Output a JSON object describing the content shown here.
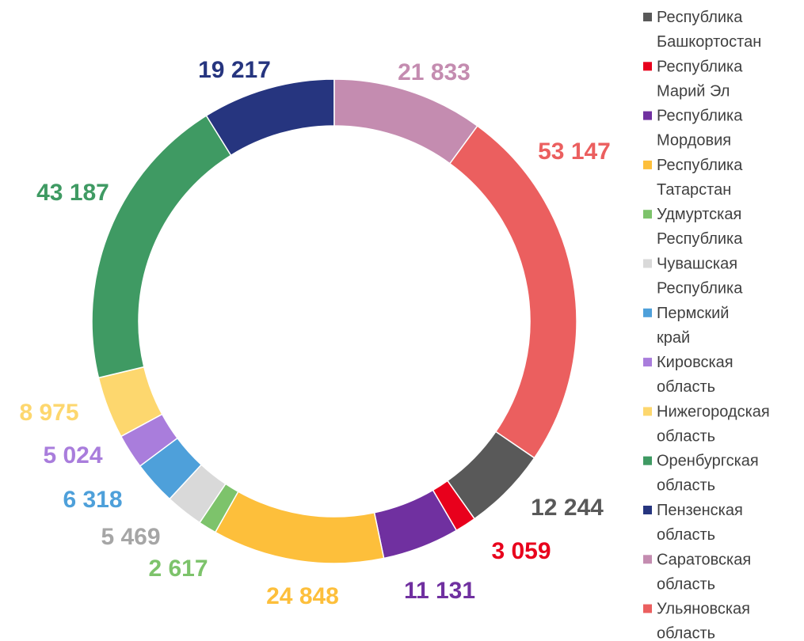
{
  "chart_data": {
    "type": "donut",
    "categories": [
      "Республика Башкортостан",
      "Республика Марий Эл",
      "Республика Мордовия",
      "Республика Татарстан",
      "Удмуртская Республика",
      "Чувашская Республика",
      "Пермский край",
      "Кировская область",
      "Нижегородская область",
      "Оренбургская область",
      "Пензенская область",
      "Саратовская область",
      "Ульяновская область"
    ],
    "values": [
      12244,
      3059,
      11131,
      24848,
      2617,
      5469,
      6318,
      5024,
      8975,
      43187,
      19217,
      21833,
      53147
    ],
    "value_labels": [
      "12 244",
      "3 059",
      "11 131",
      "24 848",
      "2 617",
      "5 469",
      "6 318",
      "5 024",
      "8 975",
      "43 187",
      "19 217",
      "21 833",
      "53 147"
    ],
    "colors": [
      "#595959",
      "#e8001c",
      "#7030a0",
      "#fdbf3b",
      "#7dc36b",
      "#d9d9d9",
      "#4ea0da",
      "#a97ddc",
      "#fdd76e",
      "#3f9a63",
      "#26357f",
      "#c48cb0",
      "#eb5f5f"
    ],
    "label_colors": [
      "#595959",
      "#e8001c",
      "#7030a0",
      "#fdbf3b",
      "#7dc36b",
      "#a6a6a6",
      "#4ea0da",
      "#a97ddc",
      "#fdd76e",
      "#3f9a63",
      "#26357f",
      "#c48cb0",
      "#eb5f5f"
    ],
    "legend": "right"
  }
}
